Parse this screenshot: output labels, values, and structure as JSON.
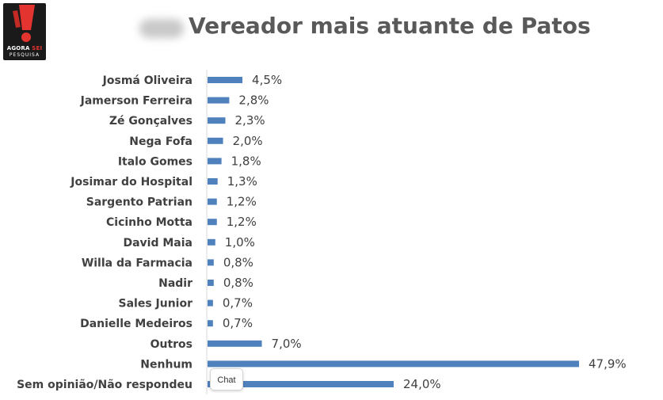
{
  "logo": {
    "line1_part1": "AGORA",
    "line1_part2": "SEI",
    "line2": "PESQUISA"
  },
  "chart_data": {
    "type": "bar",
    "orientation": "horizontal",
    "title": "Vereador mais atuante de Patos",
    "xlabel": "",
    "ylabel": "",
    "xlim": [
      0,
      47.9
    ],
    "grid": false,
    "legend": "none",
    "bar_color": "#4f81bd",
    "categories": [
      "Josmá Oliveira",
      "Jamerson Ferreira",
      "Zé Gonçalves",
      "Nega Fofa",
      "Italo Gomes",
      "Josimar do Hospital",
      "Sargento Patrian",
      "Cicinho Motta",
      "David Maia",
      "Willa da Farmacia",
      "Nadir",
      "Sales Junior",
      "Danielle Medeiros",
      "Outros",
      "Nenhum",
      "Sem opinião/Não respondeu"
    ],
    "values": [
      4.5,
      2.8,
      2.3,
      2.0,
      1.8,
      1.3,
      1.2,
      1.2,
      1.0,
      0.8,
      0.8,
      0.7,
      0.7,
      7.0,
      47.9,
      24.0
    ],
    "data_labels": [
      "4,5%",
      "2,8%",
      "2,3%",
      "2,0%",
      "1,8%",
      "1,3%",
      "1,2%",
      "1,2%",
      "1,0%",
      "0,8%",
      "0,8%",
      "0,7%",
      "0,7%",
      "7,0%",
      "47,9%",
      "24,0%"
    ]
  },
  "chat": {
    "label": "Chat"
  }
}
